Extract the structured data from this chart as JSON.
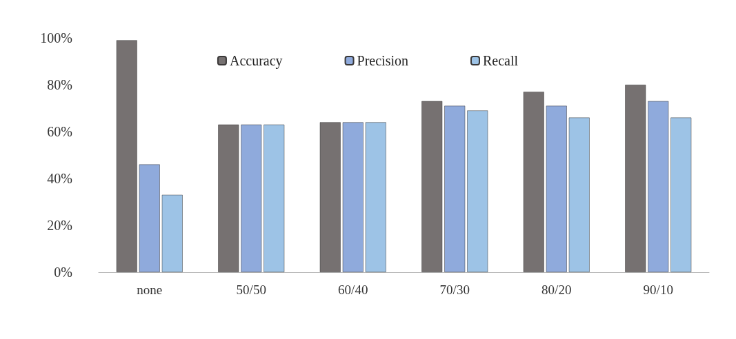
{
  "chart_data": {
    "type": "bar",
    "categories": [
      "none",
      "50/50",
      "60/40",
      "70/30",
      "80/20",
      "90/10"
    ],
    "series": [
      {
        "name": "Accuracy",
        "color": "#767171",
        "values": [
          99,
          63,
          64,
          73,
          77,
          80
        ]
      },
      {
        "name": "Precision",
        "color": "#8faadc",
        "values": [
          46,
          63,
          64,
          71,
          71,
          73
        ]
      },
      {
        "name": "Recall",
        "color": "#9dc3e6",
        "values": [
          33,
          63,
          64,
          69,
          66,
          66
        ]
      }
    ],
    "ylim": [
      0,
      100
    ],
    "yticks": [
      {
        "value": 0,
        "label": "0%"
      },
      {
        "value": 20,
        "label": "20%"
      },
      {
        "value": 40,
        "label": "40%"
      },
      {
        "value": 60,
        "label": "60%"
      },
      {
        "value": 80,
        "label": "80%"
      },
      {
        "value": 100,
        "label": "100%"
      }
    ],
    "grid": false,
    "legend": "top"
  }
}
